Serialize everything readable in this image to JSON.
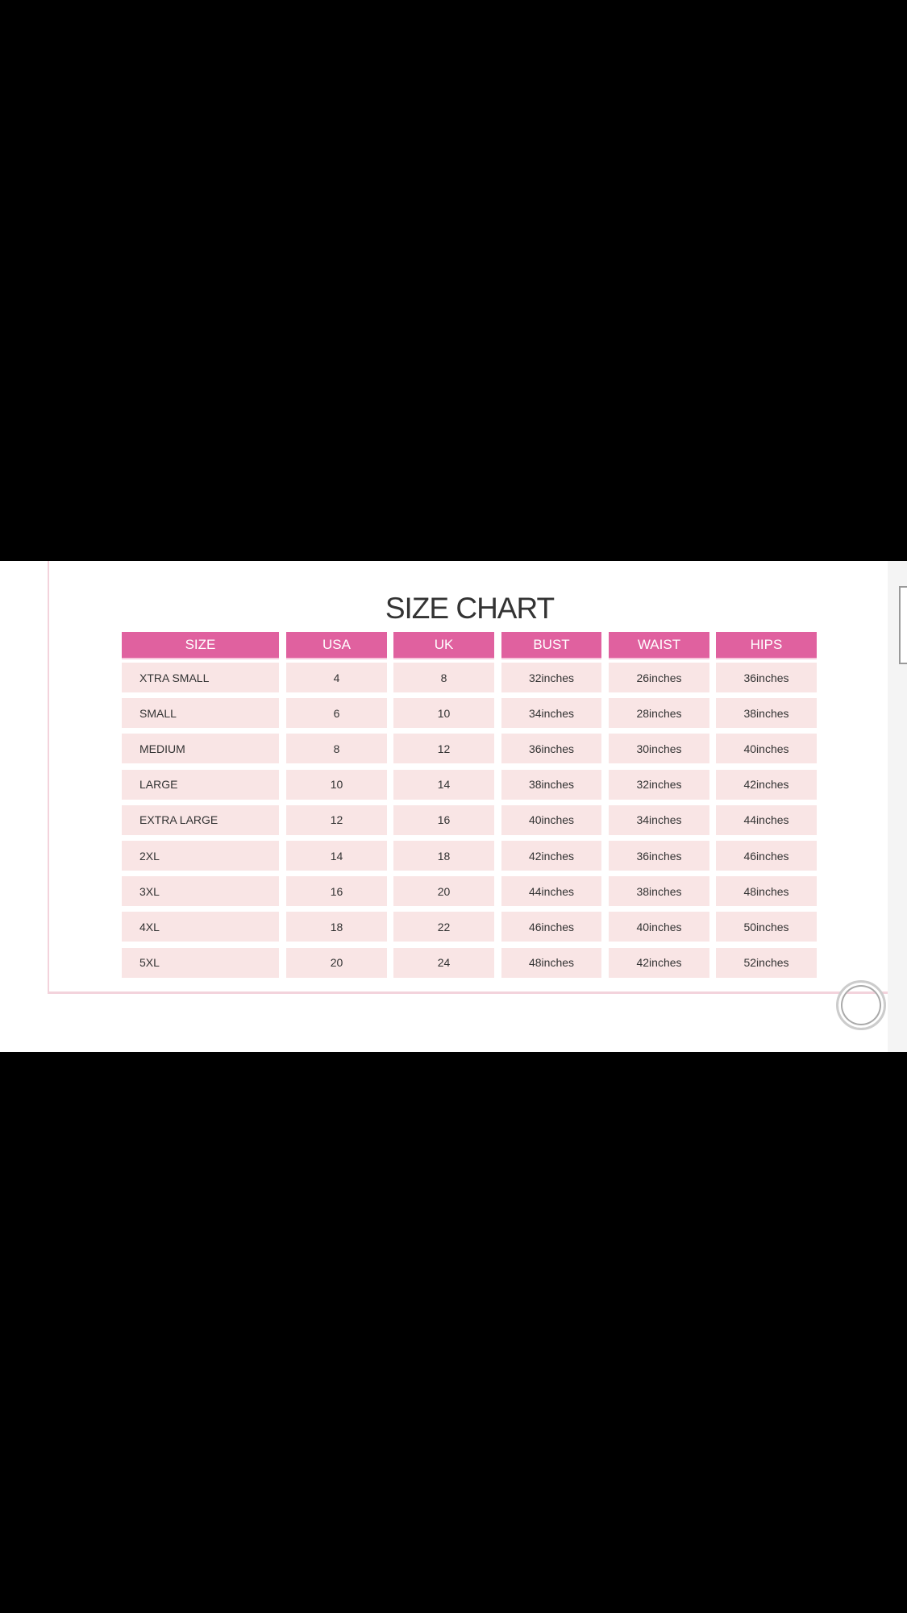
{
  "title": "SIZE CHART",
  "colors": {
    "header": "#e0619f",
    "row": "#f9e5e5",
    "frame": "#f3d3dc"
  },
  "headers": [
    "SIZE",
    "USA",
    "UK",
    "BUST",
    "WAIST",
    "HIPS"
  ],
  "rows": [
    [
      "XTRA SMALL",
      "4",
      "8",
      "32inches",
      "26inches",
      "36inches"
    ],
    [
      "SMALL",
      "6",
      "10",
      "34inches",
      "28inches",
      "38inches"
    ],
    [
      "MEDIUM",
      "8",
      "12",
      "36inches",
      "30inches",
      "40inches"
    ],
    [
      "LARGE",
      "10",
      "14",
      "38inches",
      "32inches",
      "42inches"
    ],
    [
      "EXTRA LARGE",
      "12",
      "16",
      "40inches",
      "34inches",
      "44inches"
    ],
    [
      "2XL",
      "14",
      "18",
      "42inches",
      "36inches",
      "46inches"
    ],
    [
      "3XL",
      "16",
      "20",
      "44inches",
      "38inches",
      "48inches"
    ],
    [
      "4XL",
      "18",
      "22",
      "46inches",
      "40inches",
      "50inches"
    ],
    [
      "5XL",
      "20",
      "24",
      "48inches",
      "42inches",
      "52inches"
    ]
  ],
  "icons": {
    "home_button": "circle-home-icon"
  }
}
